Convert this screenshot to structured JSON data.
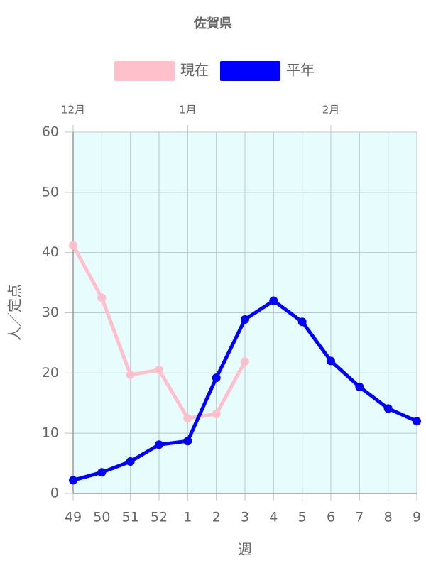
{
  "chart_data": {
    "type": "line",
    "title": "佐賀県",
    "x_label": "週",
    "y_label": "人／定点",
    "categories": [
      "49",
      "50",
      "51",
      "52",
      "1",
      "2",
      "3",
      "4",
      "5",
      "6",
      "7",
      "8",
      "9"
    ],
    "top_categories": [
      "12月",
      null,
      null,
      null,
      "1月",
      null,
      null,
      null,
      null,
      "2月",
      null,
      null,
      null
    ],
    "series": [
      {
        "name": "現在",
        "color": "#ffc0cb",
        "values": [
          41.2,
          32.5,
          19.7,
          20.5,
          12.5,
          13.2,
          21.9,
          null,
          null,
          null,
          null,
          null,
          null
        ]
      },
      {
        "name": "平年",
        "color": "#0000ff",
        "values": [
          2.2,
          3.5,
          5.3,
          8.1,
          8.7,
          19.2,
          28.9,
          32.0,
          28.5,
          22.0,
          17.7,
          14.1,
          12.0
        ]
      }
    ],
    "ylim": [
      0,
      60
    ],
    "yticks": [
      0,
      10,
      20,
      30,
      40,
      50,
      60
    ],
    "grid": true,
    "legend": "top",
    "background": "#e6fcfd"
  }
}
